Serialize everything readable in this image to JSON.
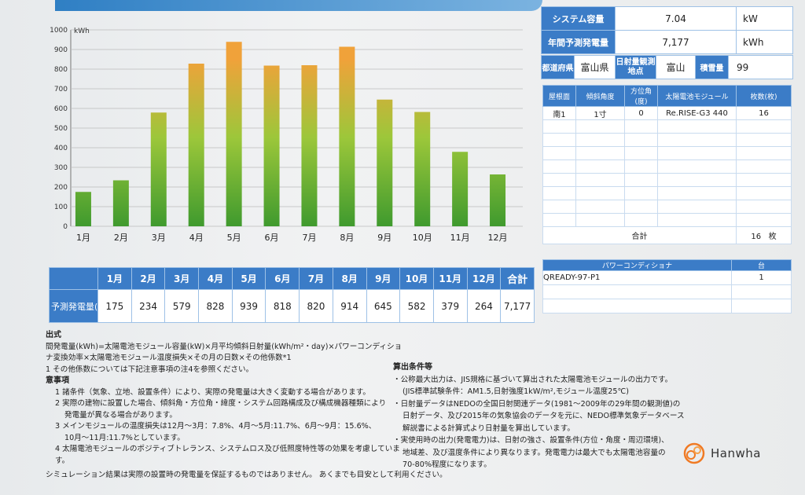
{
  "chart_data": {
    "type": "bar",
    "ylabel": "kWh",
    "y_ticks": [
      "0",
      "100",
      "200",
      "300",
      "400",
      "500",
      "600",
      "700",
      "800",
      "900",
      "1000"
    ],
    "ylim": [
      0,
      1000
    ],
    "categories": [
      "1月",
      "2月",
      "3月",
      "4月",
      "5月",
      "6月",
      "7月",
      "8月",
      "9月",
      "10月",
      "11月",
      "12月"
    ],
    "values": [
      175,
      234,
      579,
      828,
      939,
      818,
      820,
      914,
      645,
      582,
      379,
      264
    ],
    "grid": true,
    "colors": {
      "bottom": "#3f9a2e",
      "middle": "#9cc73a",
      "top": "#f0a23a"
    }
  },
  "monthly_table": {
    "row_label": "予測発電量(kWh)",
    "total_label": "合計",
    "months": [
      "1月",
      "2月",
      "3月",
      "4月",
      "5月",
      "6月",
      "7月",
      "8月",
      "9月",
      "10月",
      "11月",
      "12月"
    ],
    "values": [
      "175",
      "234",
      "579",
      "828",
      "939",
      "818",
      "820",
      "914",
      "645",
      "582",
      "379",
      "264"
    ],
    "total": "7,177"
  },
  "system": {
    "capacity_label": "システム容量",
    "capacity_value": "7.04",
    "capacity_unit": "kW",
    "annual_label": "年間予測発電量",
    "annual_value": "7,177",
    "annual_unit": "kWh",
    "pref_label": "都道府県",
    "pref_value": "富山県",
    "site_label": "日射量観測地点",
    "site_value": "富山",
    "snow_label": "積雪量",
    "snow_value": "99"
  },
  "modules": {
    "headers": [
      "屋根面",
      "傾斜角度",
      "方位角(度)",
      "太陽電池モジュール",
      "枚数(枚)"
    ],
    "rows": [
      {
        "roof": "南1",
        "tilt": "1寸",
        "azimuth": "0",
        "module": "Re.RISE-G3 440",
        "count": "16"
      }
    ],
    "total_label": "合計",
    "total_value": "16",
    "total_unit": "枚"
  },
  "power_conditioner": {
    "headers": [
      "パワーコンディショナ",
      "台"
    ],
    "rows": [
      {
        "name": "QREADY-97-P1",
        "count": "1"
      }
    ]
  },
  "notes": {
    "h_formula": "出式",
    "formula": "間発電量(kWh)=太陽電池モジュール容量(kW)×月平均傾斜日射量(kWh/m²・day)×パワーコンディショナ変換効率×太陽電池モジュール温度損失×その月の日数×その他係数*1",
    "formula_note": "1 その他係数については下記注意事項の注4を参照ください。",
    "h_caution": "意事項",
    "c1": "1  諸条件（気象、立地、設置条件）により、実際の発電量は大きく変動する場合があります。",
    "c2a": "2  実際の建物に設置した場合、傾斜角・方位角・緯度・システム回路構成及び構成機器種類により",
    "c2b": "発電量が異なる場合があります。",
    "c3a": "3  メインモジュールの温度損失は12月～3月：7.8%、4月～5月:11.7%、6月～9月：15.6%、",
    "c3b": "10月～11月:11.7%としています。",
    "c4": "4  太陽電池モジュールのポジティブトレランス、システムロス及び低照度特性等の効果を考慮しています。"
  },
  "calc": {
    "h": "算出条件等",
    "l1": "・公称最大出力は、JIS規格に基づいて算出された太陽電池モジュールの出力です。",
    "l2": "(JIS標準試験条件：AM1.5,日射強度1kW/m²,モジュール温度25℃)",
    "l3": "・日射量データはNEDOの全国日射関連データ(1981～2009年の29年間の観測値)の",
    "l4": "日射データ、及び2015年の気象協会のデータを元に、NEDO標準気象データベース",
    "l5": "解説書による計算式より日射量を算出しています。",
    "l6": "・実使用時の出力(発電電力)は、日射の強さ、設置条件(方位・角度・周辺環境)、",
    "l7": "地域差、及び温度条件により異なります。発電電力は最大でも太陽電池容量の",
    "l8": "70-80%程度になります。"
  },
  "footer": "シミュレーション結果は実際の設置時の発電量を保証するものではありません。 あくまでも目安として利用ください。",
  "logo": {
    "text": "Hanwha"
  }
}
